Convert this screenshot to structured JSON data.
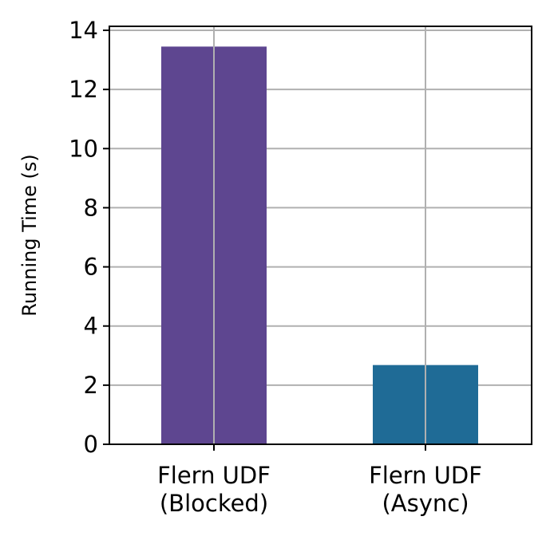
{
  "chart_data": {
    "type": "bar",
    "title": "",
    "xlabel": "",
    "ylabel": "Running Time (s)",
    "categories": [
      [
        "Flern UDF",
        "(Blocked)"
      ],
      [
        "Flern UDF",
        "(Async)"
      ]
    ],
    "values": [
      13.45,
      2.68
    ],
    "colors": [
      "#5e4690",
      "#1f6b96"
    ],
    "ylim": [
      0,
      14
    ],
    "yticks": [
      "0",
      "2",
      "4",
      "6",
      "8",
      "10",
      "12",
      "14"
    ],
    "grid": true,
    "legend": "none"
  }
}
